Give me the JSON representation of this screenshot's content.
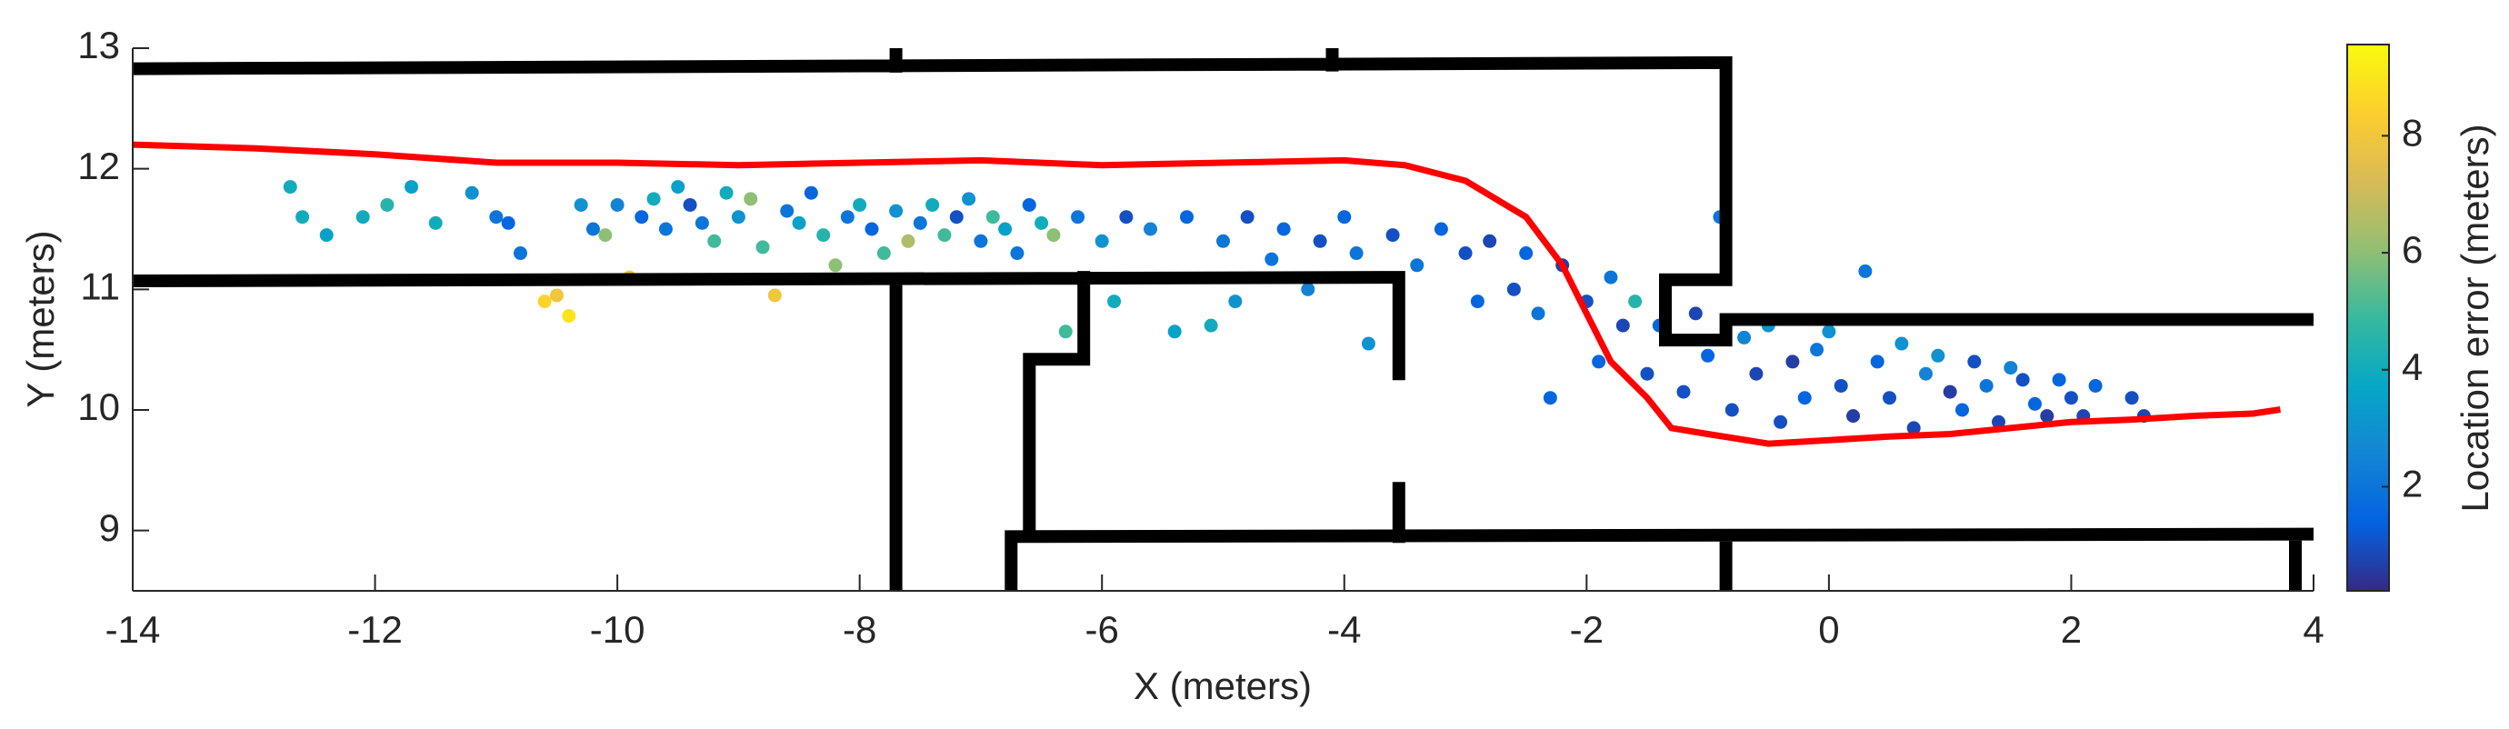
{
  "chart_data": {
    "type": "scatter",
    "xlabel": "X (meters)",
    "ylabel": "Y (meters)",
    "xlim": [
      -14,
      4
    ],
    "ylim": [
      8.5,
      13
    ],
    "xticks": [
      -14,
      -12,
      -10,
      -8,
      -6,
      -4,
      -2,
      0,
      2,
      4
    ],
    "yticks": [
      9,
      10,
      11,
      12,
      13
    ],
    "colorbar": {
      "label": "Location error (meters)",
      "lim": [
        0.22,
        9.56
      ],
      "ticks": [
        2,
        4,
        6,
        8
      ],
      "colormap": "parula"
    },
    "series": [
      {
        "type": "scatter",
        "x": [
          -12.7,
          -12.6,
          -12.4,
          -12.1,
          -11.9,
          -11.7,
          -11.5,
          -11.2,
          -11,
          -10.9,
          -10.8,
          -10.6,
          -10.5,
          -10.4,
          -10.3,
          -10.2,
          -10.1,
          -10,
          -9.9,
          -9.8,
          -9.7,
          -9.6,
          -9.5,
          -9.4,
          -9.3,
          -9.2,
          -9.1,
          -9,
          -8.9,
          -8.8,
          -8.7,
          -8.6,
          -8.5,
          -8.4,
          -8.3,
          -8.2,
          -8.1,
          -8,
          -7.9,
          -7.8,
          -7.7,
          -7.6,
          -7.5,
          -7.4,
          -7.3,
          -7.2,
          -7.1,
          -7,
          -6.9,
          -6.8,
          -6.7,
          -6.6,
          -6.5,
          -6.4,
          -6.3,
          -6.2,
          -6,
          -5.9,
          -5.8,
          -5.6,
          -5.4,
          -5.3,
          -5.1,
          -5,
          -4.9,
          -4.8,
          -4.6,
          -4.5,
          -4.3,
          -4.2,
          -4,
          -3.9,
          -3.8,
          -3.6,
          -3.4,
          -3.2,
          -3,
          -2.9,
          -2.8,
          -2.6,
          -2.5,
          -2.4,
          -2.3,
          -2.2,
          -2,
          -1.9,
          -1.8,
          -1.7,
          -1.6,
          -1.5,
          -1.4,
          -1.2,
          -1.1,
          -1,
          -0.9,
          -0.8,
          -0.7,
          -0.6,
          -0.5,
          -0.4,
          -0.3,
          -0.2,
          -0.1,
          0,
          0.1,
          0.2,
          0.3,
          0.4,
          0.5,
          0.6,
          0.7,
          0.8,
          0.9,
          1,
          1.1,
          1.2,
          1.3,
          1.4,
          1.5,
          1.6,
          1.7,
          1.8,
          1.9,
          2,
          2.1,
          2.2,
          2.5,
          2.6
        ],
        "y": [
          11.85,
          11.6,
          11.45,
          11.6,
          11.7,
          11.85,
          11.55,
          11.8,
          11.6,
          11.55,
          11.3,
          10.9,
          10.95,
          10.78,
          11.7,
          11.5,
          11.45,
          11.7,
          11.1,
          11.6,
          11.75,
          11.5,
          11.85,
          11.7,
          11.55,
          11.4,
          11.8,
          11.6,
          11.75,
          11.35,
          10.95,
          11.65,
          11.55,
          11.8,
          11.45,
          11.2,
          11.6,
          11.7,
          11.5,
          11.3,
          11.65,
          11.4,
          11.55,
          11.7,
          11.45,
          11.6,
          11.75,
          11.4,
          11.6,
          11.5,
          11.3,
          11.7,
          11.55,
          11.45,
          10.65,
          11.6,
          11.4,
          10.9,
          11.6,
          11.5,
          10.65,
          11.6,
          10.7,
          11.4,
          10.9,
          11.6,
          11.25,
          11.5,
          11,
          11.4,
          11.6,
          11.3,
          10.55,
          11.45,
          11.2,
          11.5,
          11.3,
          10.9,
          11.4,
          11,
          11.3,
          10.8,
          10.1,
          11.2,
          10.9,
          10.4,
          11.1,
          10.7,
          10.9,
          10.3,
          10.7,
          10.15,
          10.8,
          10.45,
          11.6,
          10,
          10.6,
          10.3,
          10.7,
          9.9,
          10.4,
          10.1,
          10.5,
          10.65,
          10.2,
          9.95,
          11.15,
          10.4,
          10.1,
          10.55,
          9.85,
          10.3,
          10.45,
          10.15,
          10,
          10.4,
          10.2,
          9.9,
          10.35,
          10.25,
          10.05,
          9.95,
          10.25,
          10.1,
          9.95,
          10.2,
          10.1,
          9.95
        ],
        "c": [
          4,
          4,
          3.5,
          4,
          4.5,
          3.5,
          4,
          3,
          2,
          1.5,
          2,
          8.5,
          8,
          9,
          3,
          2,
          6,
          2.5,
          8,
          1.5,
          4,
          2,
          3.5,
          1,
          2,
          5,
          4,
          3,
          6,
          5,
          8,
          2,
          3.5,
          1.5,
          4.5,
          6,
          2,
          4,
          1.5,
          5,
          3,
          6.5,
          2,
          4,
          5,
          1,
          3,
          2,
          5,
          3.5,
          2,
          1.5,
          4,
          6,
          5,
          2,
          3,
          4,
          1,
          2.5,
          3.5,
          1.5,
          4,
          2,
          3,
          1,
          2,
          1.5,
          2.5,
          1,
          1.5,
          2,
          3,
          1,
          2,
          1.5,
          1,
          1.5,
          0.8,
          1,
          1.5,
          2,
          1.5,
          0.7,
          1,
          1.5,
          2,
          0.8,
          4.5,
          1,
          1.5,
          1,
          0.8,
          1.5,
          2,
          1,
          2.5,
          0.8,
          3,
          1,
          0.6,
          1.5,
          2,
          3,
          1,
          0.6,
          2,
          1.5,
          1,
          3,
          0.8,
          2.5,
          3,
          0.6,
          1.5,
          1,
          2,
          0.8,
          2.5,
          1,
          1.5,
          0.6,
          1.5,
          1,
          0.8,
          1.5,
          1,
          0.8
        ]
      },
      {
        "type": "line",
        "color": "#ff0000",
        "x": [
          -14,
          -13,
          -12,
          -11,
          -10,
          -9,
          -8,
          -7,
          -6,
          -5,
          -4,
          -3.5,
          -3,
          -2.5,
          -2.2,
          -2,
          -1.8,
          -1.5,
          -1.3,
          -1,
          -0.5,
          0,
          0.5,
          1,
          1.5,
          2,
          2.5,
          3,
          3.5,
          3.7
        ],
        "y": [
          12.2,
          12.17,
          12.12,
          12.05,
          12.05,
          12.03,
          12.05,
          12.07,
          12.03,
          12.05,
          12.07,
          12.03,
          11.9,
          11.6,
          11.2,
          10.8,
          10.4,
          10.1,
          9.85,
          9.8,
          9.72,
          9.75,
          9.78,
          9.8,
          9.85,
          9.9,
          9.92,
          9.95,
          9.97,
          10
        ]
      },
      {
        "type": "line",
        "color": "#000000",
        "x": [
          -14,
          -0.85,
          -0.85,
          -1.35,
          -1.35,
          -0.85,
          -0.85,
          4,
          null,
          -7.7,
          -7.7,
          null,
          -4.1,
          -4.1,
          null,
          -14,
          -3.55,
          -3.55,
          null,
          -7.7,
          -7.7,
          null,
          -6.15,
          -6.15,
          -6.6,
          -6.6,
          null,
          -3.55,
          -3.55,
          null,
          -6.75,
          -6.75,
          4,
          null,
          -0.85,
          -0.85,
          null,
          3.85,
          3.85
        ],
        "y": [
          12.83,
          12.88,
          11.08,
          11.08,
          10.58,
          10.58,
          10.75,
          10.75,
          null,
          12.85,
          13,
          null,
          12.86,
          13,
          null,
          11.07,
          11.1,
          10.3,
          null,
          11.07,
          8.5,
          null,
          11.1,
          10.42,
          10.42,
          8.95,
          null,
          9.35,
          8.95,
          null,
          8.5,
          8.95,
          8.97,
          null,
          8.95,
          8.5,
          null,
          8.95,
          8.5
        ]
      }
    ]
  }
}
